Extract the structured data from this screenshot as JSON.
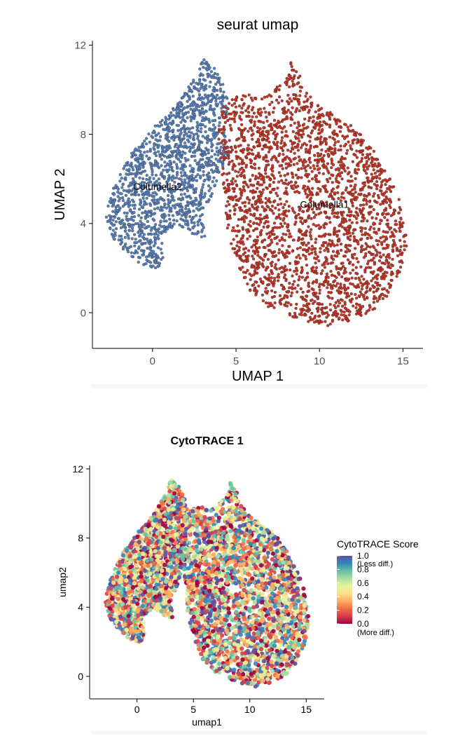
{
  "chart_data": [
    {
      "type": "scatter",
      "title": "seurat umap",
      "xlabel": "UMAP 1",
      "ylabel": "UMAP 2",
      "xlim": [
        -3.6,
        16.2
      ],
      "ylim": [
        -1.6,
        12.2
      ],
      "xticks": [
        0,
        5,
        10,
        15
      ],
      "yticks": [
        0,
        4,
        8,
        12
      ],
      "series": [
        {
          "name": "Columella2",
          "color": "#5a80b5",
          "label_at": [
            0.3,
            5.5
          ]
        },
        {
          "name": "Columella1",
          "color": "#c0392b",
          "label_at": [
            10.3,
            4.7
          ]
        }
      ]
    },
    {
      "type": "scatter",
      "title": "CytoTRACE 1",
      "xlabel": "umap1",
      "ylabel": "umap2",
      "xlim": [
        -4.2,
        16.6
      ],
      "ylim": [
        -1.3,
        12.2
      ],
      "xticks": [
        0,
        5,
        10,
        15
      ],
      "yticks": [
        0,
        4,
        8,
        12
      ],
      "colorbar": {
        "title": "CytoTRACE Score",
        "ticks": [
          "1.0",
          "0.8",
          "0.6",
          "0.4",
          "0.2",
          "0.0"
        ],
        "top_note": "(Less diff.)",
        "bottom_note": "(More diff.)",
        "colors": [
          "#5e4fa2",
          "#3288bd",
          "#66c2a5",
          "#abdda4",
          "#e6f598",
          "#fee08b",
          "#fdae61",
          "#f46d43",
          "#d53e4f",
          "#9e0142"
        ]
      }
    }
  ]
}
